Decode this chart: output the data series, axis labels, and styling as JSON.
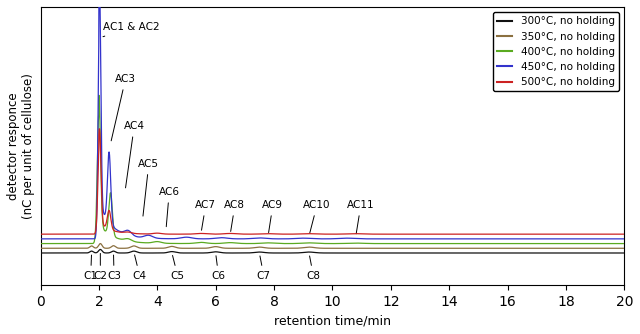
{
  "xlabel": "retention time/min",
  "ylabel": "detector responce\n(nC per unit of cellulose)",
  "xlim": [
    0,
    20
  ],
  "ylim": [
    -0.08,
    1.1
  ],
  "colors": {
    "300": "#111111",
    "350": "#8B7040",
    "400": "#5aaa20",
    "450": "#3333cc",
    "500": "#cc2222"
  },
  "legend_labels": [
    "300°C, no holding",
    "350°C, no holding",
    "400°C, no holding",
    "450°C, no holding",
    "500°C, no holding"
  ],
  "baselines": {
    "300": 0.055,
    "350": 0.075,
    "400": 0.095,
    "450": 0.115,
    "500": 0.135
  }
}
